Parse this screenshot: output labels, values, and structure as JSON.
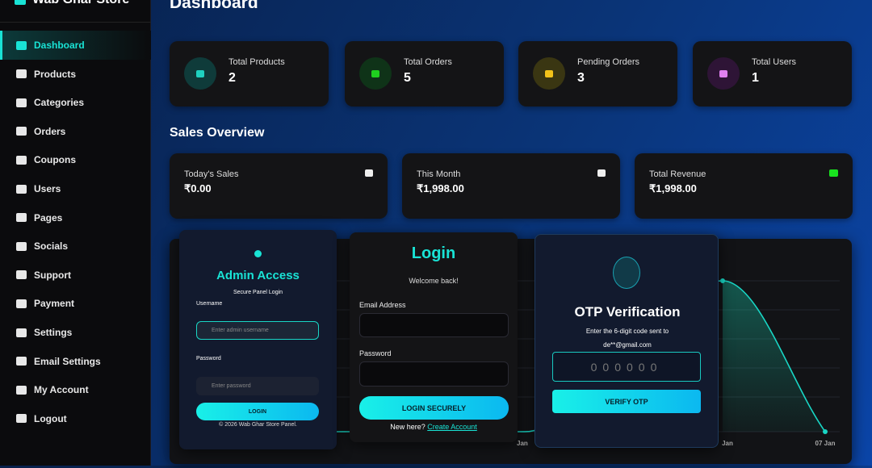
{
  "sidebar": {
    "brand": "Wab Ghar Store",
    "nav": [
      "Dashboard",
      "Products",
      "Categories",
      "Orders",
      "Coupons",
      "Users",
      "Pages",
      "Socials",
      "Support",
      "Payment",
      "Settings",
      "Email Settings",
      "My Account",
      "Logout"
    ]
  },
  "header": {
    "title": "Dashboard"
  },
  "stats": [
    {
      "label": "Total Products",
      "value": 2
    },
    {
      "label": "Total Orders",
      "value": 5
    },
    {
      "label": "Pending Orders",
      "value": 3
    },
    {
      "label": "Total Users",
      "value": 1
    }
  ],
  "sales": {
    "title": "Sales Overview",
    "cards": [
      {
        "label": "Today's Sales",
        "value": "₹0.00"
      },
      {
        "label": "This Month",
        "value": "₹1,998.00"
      },
      {
        "label": "Total Revenue",
        "value": "₹1,998.00"
      }
    ]
  },
  "chart": {
    "x_labels": [
      "Jan",
      "Jan",
      "07 Jan"
    ]
  },
  "admin_login": {
    "title": "Admin Access",
    "subtitle": "Secure Panel Login",
    "username_label": "Username",
    "username_placeholder": "Enter admin username",
    "password_label": "Password",
    "password_placeholder": "Enter password",
    "button": "LOGIN",
    "footer": "© 2026 Wab Ghar Store Panel."
  },
  "login": {
    "title": "Login",
    "subtitle": "Welcome back!",
    "email_label": "Email Address",
    "password_label": "Password",
    "button": "LOGIN SECURELY",
    "signup_prompt": "New here?",
    "signup_link": "Create Account"
  },
  "otp": {
    "title": "OTP Verification",
    "message": "Enter the 6-digit code sent to",
    "email": "de**@gmail.com",
    "placeholder": "000000",
    "button": "VERIFY OTP"
  }
}
